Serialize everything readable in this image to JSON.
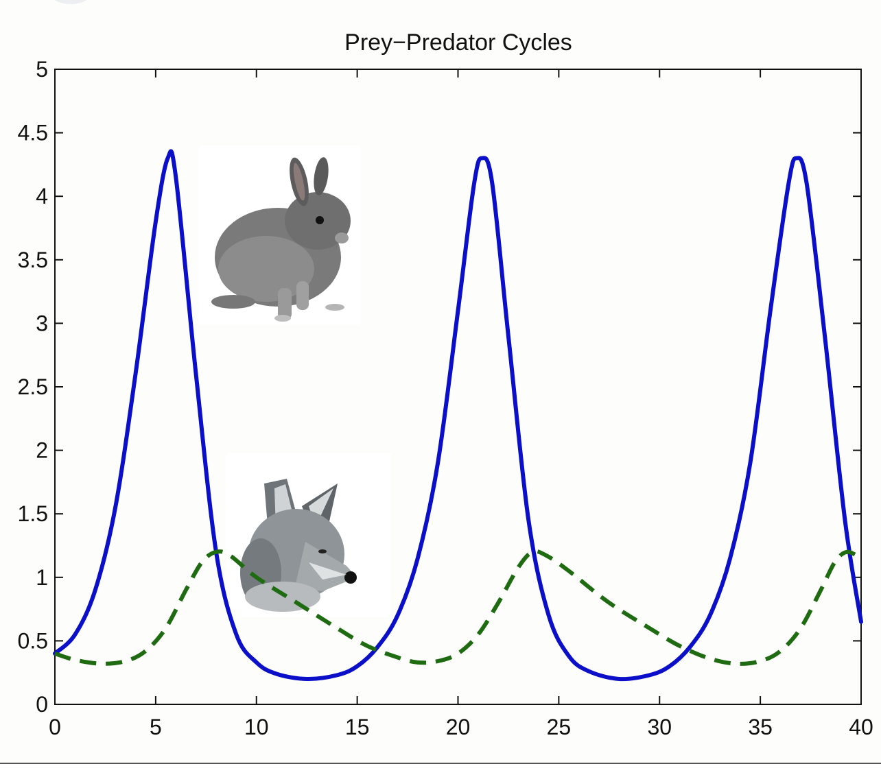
{
  "chart_data": {
    "type": "line",
    "title": "Prey−Predator Cycles",
    "xlabel": "",
    "ylabel": "",
    "xlim": [
      0,
      40
    ],
    "ylim": [
      0,
      5
    ],
    "x_ticks": [
      "0",
      "5",
      "10",
      "15",
      "20",
      "25",
      "30",
      "35",
      "40"
    ],
    "y_ticks": [
      "0",
      "0.5",
      "1",
      "1.5",
      "2",
      "2.5",
      "3",
      "3.5",
      "4",
      "4.5",
      "5"
    ],
    "grid": false,
    "legend": "none",
    "series": [
      {
        "color": "#0b10c8",
        "line_style": "solid",
        "points": [
          [
            0,
            0.4
          ],
          [
            1,
            0.55
          ],
          [
            2,
            0.9
          ],
          [
            3,
            1.55
          ],
          [
            4,
            2.6
          ],
          [
            5,
            3.8
          ],
          [
            5.6,
            4.3
          ],
          [
            6,
            4.15
          ],
          [
            7,
            2.6
          ],
          [
            8,
            1.2
          ],
          [
            9,
            0.55
          ],
          [
            10,
            0.33
          ],
          [
            11,
            0.24
          ],
          [
            12.5,
            0.2
          ],
          [
            14,
            0.23
          ],
          [
            15,
            0.3
          ],
          [
            16,
            0.45
          ],
          [
            17,
            0.7
          ],
          [
            18,
            1.15
          ],
          [
            19,
            1.9
          ],
          [
            20,
            3.1
          ],
          [
            20.8,
            4.1
          ],
          [
            21.2,
            4.3
          ],
          [
            21.7,
            4.1
          ],
          [
            22.5,
            2.9
          ],
          [
            23.5,
            1.45
          ],
          [
            24.5,
            0.7
          ],
          [
            25.5,
            0.38
          ],
          [
            26.5,
            0.26
          ],
          [
            28,
            0.2
          ],
          [
            29.5,
            0.23
          ],
          [
            30.5,
            0.3
          ],
          [
            31.5,
            0.45
          ],
          [
            32.5,
            0.7
          ],
          [
            33.5,
            1.15
          ],
          [
            34.5,
            1.9
          ],
          [
            35.5,
            3.1
          ],
          [
            36.4,
            4.1
          ],
          [
            36.8,
            4.3
          ],
          [
            37.3,
            4.1
          ],
          [
            38.2,
            2.9
          ],
          [
            39.2,
            1.45
          ],
          [
            40,
            0.65
          ]
        ]
      },
      {
        "color": "#1f6b12",
        "line_style": "dashed",
        "points": [
          [
            0,
            0.4
          ],
          [
            1,
            0.35
          ],
          [
            2.3,
            0.32
          ],
          [
            3.5,
            0.34
          ],
          [
            4.5,
            0.42
          ],
          [
            5.5,
            0.6
          ],
          [
            6.5,
            0.9
          ],
          [
            7.3,
            1.12
          ],
          [
            8,
            1.2
          ],
          [
            8.7,
            1.17
          ],
          [
            10,
            1.0
          ],
          [
            12,
            0.8
          ],
          [
            14,
            0.6
          ],
          [
            15.5,
            0.46
          ],
          [
            17,
            0.37
          ],
          [
            18,
            0.33
          ],
          [
            19,
            0.34
          ],
          [
            20,
            0.4
          ],
          [
            21,
            0.55
          ],
          [
            22,
            0.8
          ],
          [
            23,
            1.08
          ],
          [
            23.7,
            1.2
          ],
          [
            24.4,
            1.17
          ],
          [
            25.5,
            1.05
          ],
          [
            27.5,
            0.8
          ],
          [
            29.5,
            0.6
          ],
          [
            31,
            0.46
          ],
          [
            32.5,
            0.36
          ],
          [
            33.8,
            0.32
          ],
          [
            35,
            0.34
          ],
          [
            36,
            0.42
          ],
          [
            37,
            0.6
          ],
          [
            38,
            0.9
          ],
          [
            38.7,
            1.12
          ],
          [
            39.3,
            1.2
          ],
          [
            40,
            1.15
          ]
        ]
      }
    ]
  },
  "images": {
    "rabbit": "rabbit-photo",
    "fox": "fox-photo"
  }
}
